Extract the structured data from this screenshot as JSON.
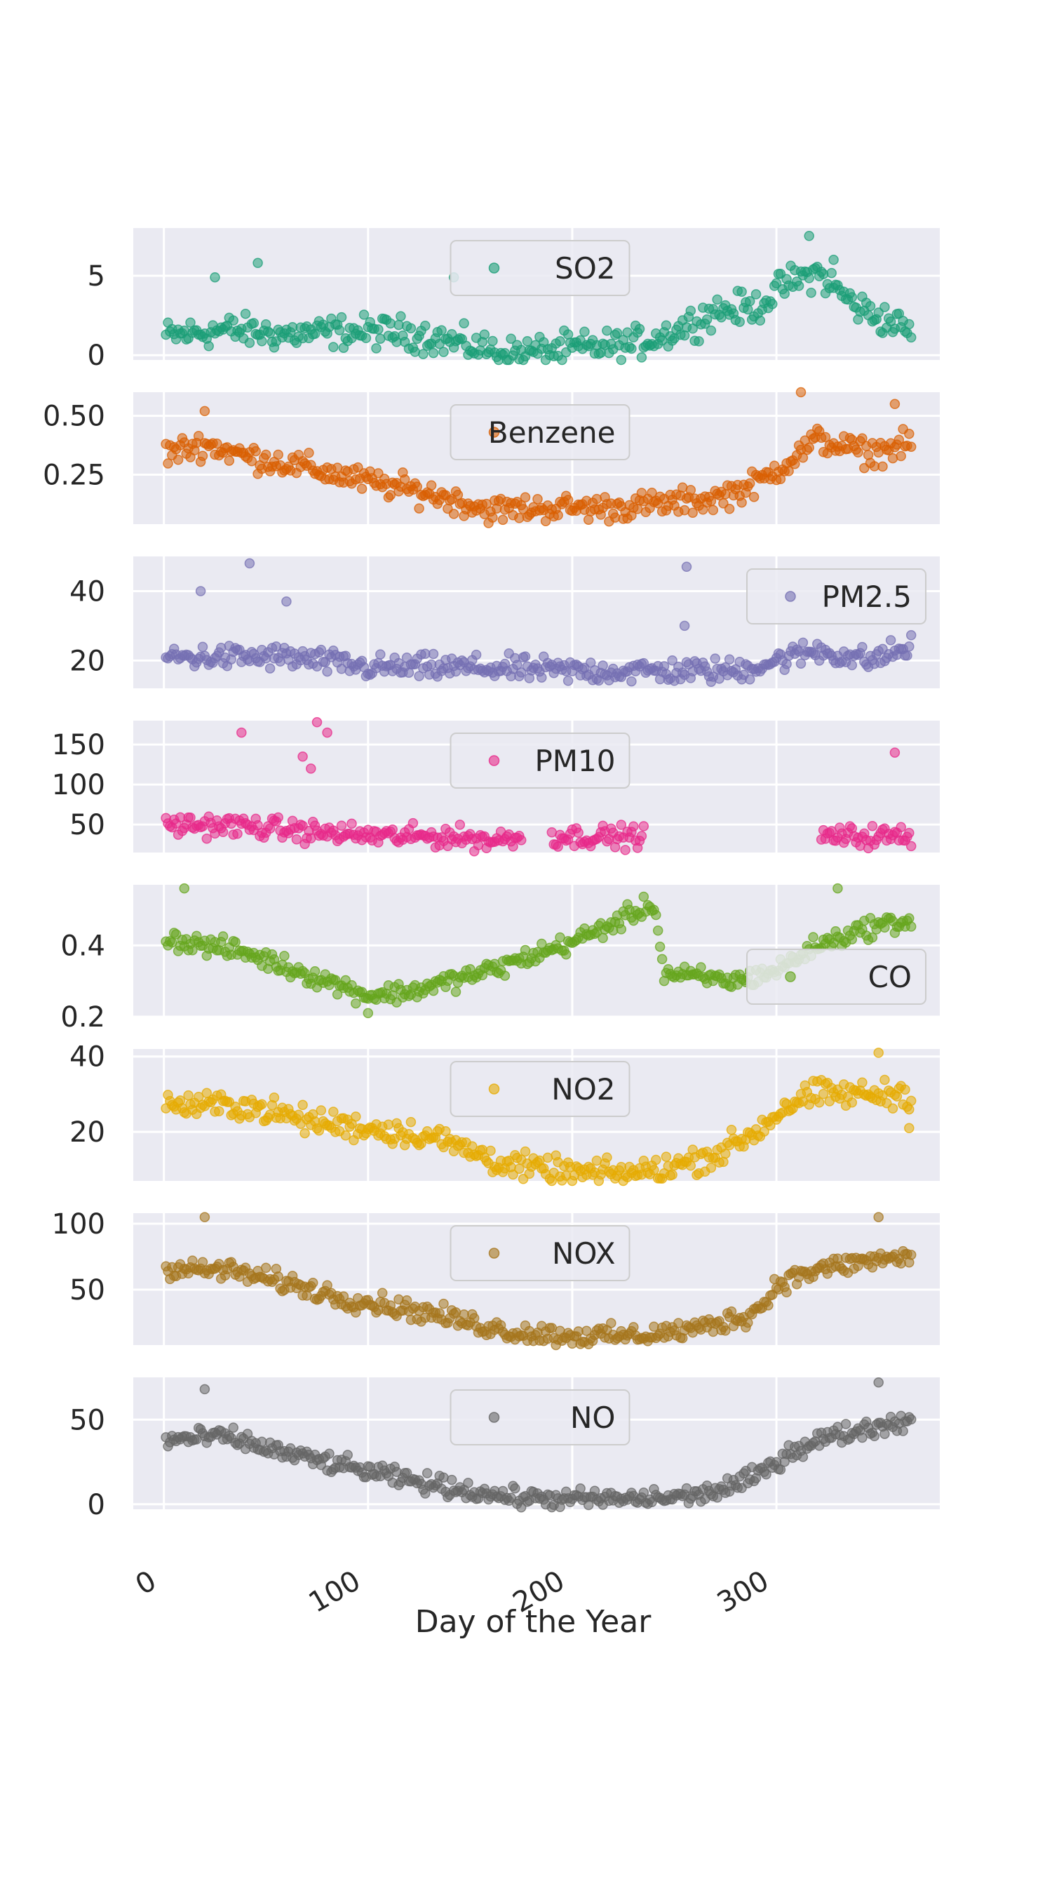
{
  "chart_data": {
    "type": "scatter",
    "xlabel": "Day of the Year",
    "xlim": [
      -15,
      380
    ],
    "x_ticks": [
      0,
      100,
      200,
      300
    ],
    "x_tick_labels": [
      "0",
      "100",
      "200",
      "300"
    ],
    "grid": true,
    "panels": [
      {
        "name": "SO2",
        "color": "#1b9e77",
        "legend_position": "top-center",
        "ylim": [
          -0.3,
          8.0
        ],
        "y_ticks": [
          0,
          5
        ],
        "y_tick_labels": [
          "0",
          "5"
        ],
        "profile": [
          [
            1,
            1.2
          ],
          [
            30,
            1.6
          ],
          [
            60,
            1.3
          ],
          [
            90,
            1.5
          ],
          [
            120,
            1.4
          ],
          [
            150,
            0.6
          ],
          [
            170,
            0.1
          ],
          [
            200,
            0.4
          ],
          [
            230,
            0.7
          ],
          [
            250,
            1.5
          ],
          [
            270,
            2.8
          ],
          [
            290,
            3.0
          ],
          [
            305,
            4.5
          ],
          [
            320,
            5.2
          ],
          [
            340,
            3.0
          ],
          [
            366,
            1.5
          ]
        ],
        "noise": 0.9,
        "extras": [
          [
            25,
            4.9
          ],
          [
            46,
            5.8
          ],
          [
            142,
            4.9
          ],
          [
            316,
            7.5
          ],
          [
            328,
            6.0
          ]
        ]
      },
      {
        "name": "Benzene",
        "color": "#d95f02",
        "legend_position": "top-center",
        "ylim": [
          0.04,
          0.6
        ],
        "y_ticks": [
          0.25,
          0.5
        ],
        "y_tick_labels": [
          "0.25",
          "0.50"
        ],
        "profile": [
          [
            1,
            0.34
          ],
          [
            20,
            0.38
          ],
          [
            40,
            0.33
          ],
          [
            70,
            0.28
          ],
          [
            100,
            0.22
          ],
          [
            130,
            0.17
          ],
          [
            160,
            0.1
          ],
          [
            190,
            0.11
          ],
          [
            220,
            0.11
          ],
          [
            250,
            0.13
          ],
          [
            270,
            0.15
          ],
          [
            290,
            0.21
          ],
          [
            305,
            0.3
          ],
          [
            320,
            0.4
          ],
          [
            345,
            0.34
          ],
          [
            366,
            0.38
          ]
        ],
        "noise": 0.05,
        "extras": [
          [
            20,
            0.52
          ],
          [
            312,
            0.6
          ],
          [
            358,
            0.55
          ]
        ]
      },
      {
        "name": "PM2.5",
        "color": "#7570b3",
        "legend_position": "top-right",
        "ylim": [
          12,
          50
        ],
        "y_ticks": [
          20,
          40
        ],
        "y_tick_labels": [
          "20",
          "40"
        ],
        "profile": [
          [
            1,
            21
          ],
          [
            60,
            21
          ],
          [
            100,
            18
          ],
          [
            150,
            18
          ],
          [
            200,
            17
          ],
          [
            250,
            17
          ],
          [
            280,
            17
          ],
          [
            300,
            20
          ],
          [
            320,
            23
          ],
          [
            345,
            20
          ],
          [
            366,
            24
          ]
        ],
        "noise": 3.2,
        "extras": [
          [
            18,
            40
          ],
          [
            42,
            48
          ],
          [
            60,
            37
          ],
          [
            256,
            47
          ],
          [
            255,
            30
          ]
        ]
      },
      {
        "name": "PM10",
        "color": "#e7298a",
        "legend_position": "top-center",
        "ylim": [
          15,
          180
        ],
        "y_ticks": [
          50,
          100,
          150
        ],
        "y_tick_labels": [
          "50",
          "100",
          "150"
        ],
        "profile": [
          [
            1,
            50
          ],
          [
            40,
            48
          ],
          [
            75,
            40
          ],
          [
            110,
            35
          ],
          [
            140,
            35
          ],
          [
            160,
            30
          ],
          [
            175,
            35
          ]
        ],
        "noise": 12,
        "extras": [
          [
            38,
            165
          ],
          [
            75,
            178
          ],
          [
            80,
            165
          ],
          [
            68,
            135
          ],
          [
            72,
            120
          ],
          [
            358,
            140
          ]
        ],
        "ranges": [
          [
            1,
            175,
            1
          ],
          [
            190,
            235,
            1
          ],
          [
            322,
            366,
            1
          ]
        ]
      },
      {
        "name": "CO",
        "color": "#66a61e",
        "legend_position": "bottom-right",
        "ylim": [
          0.2,
          0.57
        ],
        "y_ticks": [
          0.2,
          0.4
        ],
        "y_tick_labels": [
          "0.2",
          "0.4"
        ],
        "profile": [
          [
            1,
            0.42
          ],
          [
            40,
            0.38
          ],
          [
            70,
            0.32
          ],
          [
            100,
            0.26
          ],
          [
            120,
            0.27
          ],
          [
            140,
            0.3
          ],
          [
            160,
            0.33
          ],
          [
            180,
            0.37
          ],
          [
            200,
            0.41
          ],
          [
            220,
            0.46
          ],
          [
            240,
            0.52
          ],
          [
            245,
            0.32
          ],
          [
            280,
            0.3
          ],
          [
            300,
            0.33
          ],
          [
            320,
            0.4
          ],
          [
            345,
            0.45
          ],
          [
            366,
            0.47
          ]
        ],
        "noise": 0.025,
        "extras": [
          [
            10,
            0.56
          ],
          [
            100,
            0.21
          ],
          [
            330,
            0.56
          ]
        ]
      },
      {
        "name": "NO2",
        "color": "#e6ab02",
        "legend_position": "top-center",
        "ylim": [
          7,
          42
        ],
        "y_ticks": [
          20,
          40
        ],
        "y_tick_labels": [
          "20",
          "40"
        ],
        "profile": [
          [
            1,
            27
          ],
          [
            40,
            27
          ],
          [
            70,
            23
          ],
          [
            100,
            21
          ],
          [
            130,
            19
          ],
          [
            150,
            15
          ],
          [
            170,
            11
          ],
          [
            200,
            9
          ],
          [
            230,
            9
          ],
          [
            250,
            11
          ],
          [
            270,
            14
          ],
          [
            290,
            20
          ],
          [
            305,
            27
          ],
          [
            320,
            30
          ],
          [
            340,
            30
          ],
          [
            366,
            30
          ]
        ],
        "noise": 3.2,
        "extras": [
          [
            350,
            41
          ],
          [
            365,
            21
          ]
        ]
      },
      {
        "name": "NOX",
        "color": "#a6761d",
        "legend_position": "top-center",
        "ylim": [
          8,
          108
        ],
        "y_ticks": [
          50,
          100
        ],
        "y_tick_labels": [
          "50",
          "100"
        ],
        "profile": [
          [
            1,
            65
          ],
          [
            30,
            65
          ],
          [
            60,
            55
          ],
          [
            90,
            43
          ],
          [
            110,
            38
          ],
          [
            130,
            32
          ],
          [
            150,
            25
          ],
          [
            170,
            18
          ],
          [
            200,
            15
          ],
          [
            230,
            15
          ],
          [
            260,
            20
          ],
          [
            285,
            30
          ],
          [
            295,
            40
          ],
          [
            300,
            55
          ],
          [
            320,
            65
          ],
          [
            345,
            72
          ],
          [
            366,
            75
          ]
        ],
        "noise": 7,
        "extras": [
          [
            20,
            105
          ],
          [
            350,
            105
          ]
        ]
      },
      {
        "name": "NO",
        "color": "#666666",
        "legend_position": "top-center",
        "ylim": [
          -3,
          75
        ],
        "y_ticks": [
          0,
          50
        ],
        "y_tick_labels": [
          "0",
          "50"
        ],
        "profile": [
          [
            1,
            38
          ],
          [
            30,
            40
          ],
          [
            60,
            30
          ],
          [
            90,
            22
          ],
          [
            120,
            14
          ],
          [
            150,
            8
          ],
          [
            170,
            4
          ],
          [
            200,
            3
          ],
          [
            230,
            3
          ],
          [
            260,
            5
          ],
          [
            280,
            11
          ],
          [
            295,
            20
          ],
          [
            305,
            30
          ],
          [
            320,
            38
          ],
          [
            345,
            45
          ],
          [
            366,
            50
          ]
        ],
        "noise": 5,
        "extras": [
          [
            20,
            68
          ],
          [
            350,
            72
          ]
        ]
      }
    ]
  }
}
